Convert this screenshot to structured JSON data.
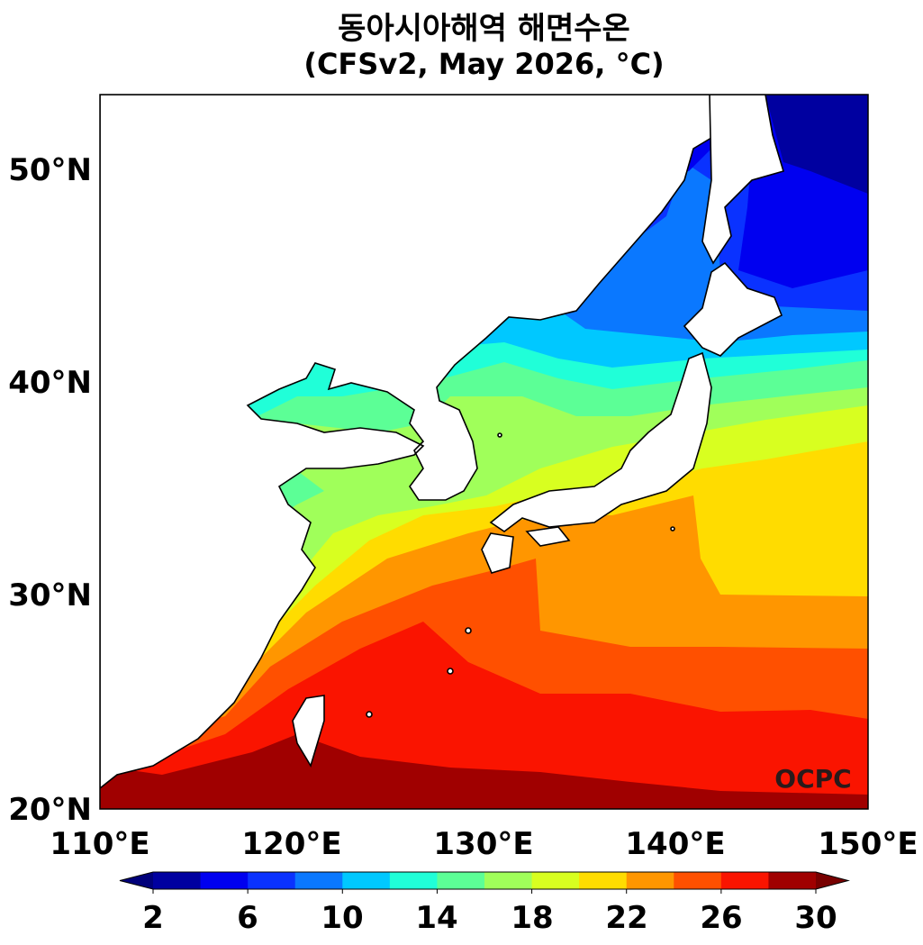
{
  "title": {
    "line1": "동아시아해역 해면수온",
    "line2": "(CFSv2, May 2026, °C)"
  },
  "map": {
    "type": "filled-contour",
    "variable": "sea surface temperature",
    "region": {
      "lon": [
        110,
        150
      ],
      "lat": [
        20,
        53.5
      ]
    },
    "lat_labels": [
      "50°N",
      "40°N",
      "30°N",
      "20°N"
    ],
    "lon_labels": [
      "110°E",
      "120°E",
      "130°E",
      "140°E",
      "150°E"
    ],
    "land_color": "#ffffff",
    "coastline_color": "#000000"
  },
  "colorbar": {
    "ticks": [
      "2",
      "6",
      "10",
      "14",
      "18",
      "22",
      "26",
      "30"
    ],
    "levels": [
      2,
      4,
      6,
      8,
      10,
      12,
      14,
      16,
      18,
      20,
      22,
      24,
      26,
      28,
      30
    ],
    "under_color": "#00007a",
    "over_color": "#780000",
    "colors": [
      "#0000a0",
      "#0000f0",
      "#0a32ff",
      "#0a78ff",
      "#00c8ff",
      "#20ffd8",
      "#5cff96",
      "#a0ff5a",
      "#d8ff20",
      "#ffdc00",
      "#ff9600",
      "#ff5000",
      "#fa1400",
      "#a00000"
    ]
  },
  "logo": {
    "text": "OCPC"
  }
}
